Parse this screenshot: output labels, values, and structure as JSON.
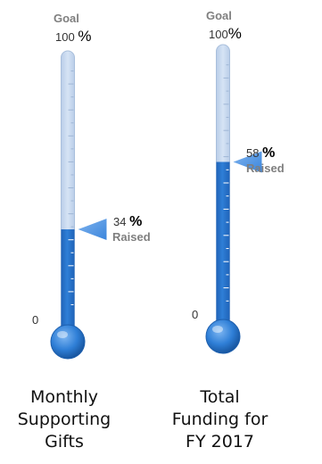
{
  "gauges": [
    {
      "goal_label": "Goal",
      "top_value": "100",
      "top_unit": "%",
      "bottom_value": "0",
      "raised_value": "34",
      "raised_unit": "%",
      "raised_label": "Raised",
      "caption": [
        "Monthly",
        "Supporting",
        "Gifts"
      ]
    },
    {
      "goal_label": "Goal",
      "top_value": "100",
      "top_unit": "%",
      "bottom_value": "0",
      "raised_value": "58",
      "raised_unit": "%",
      "raised_label": "Raised",
      "caption": [
        "Total",
        "Funding for",
        "FY 2017"
      ]
    }
  ],
  "chart_data": [
    {
      "type": "bar",
      "categories": [
        "Monthly Supporting Gifts"
      ],
      "values": [
        34
      ],
      "ylim": [
        0,
        100
      ]
    },
    {
      "type": "bar",
      "categories": [
        "Total Funding for FY 2017"
      ],
      "values": [
        58
      ],
      "ylim": [
        0,
        100
      ]
    }
  ],
  "colors": {
    "fill": "#2f7fd7",
    "fill_dark": "#1f63b8",
    "empty_tube": "#d6e4f5",
    "tick": "#ffffff",
    "marker": "#3a85dc"
  }
}
